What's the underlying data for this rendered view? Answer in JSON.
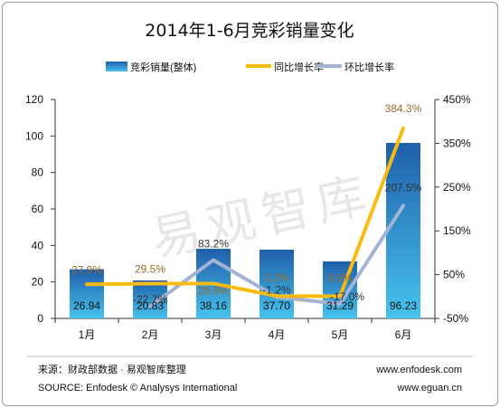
{
  "chart_data": {
    "type": "bar",
    "title": "2014年1-6月竞彩销量变化",
    "categories": [
      "1月",
      "2月",
      "3月",
      "4月",
      "5月",
      "6月"
    ],
    "series": [
      {
        "name": "竞彩销量(整体)",
        "type": "bar",
        "axis": "left",
        "values": [
          26.94,
          20.83,
          38.16,
          37.7,
          31.29,
          96.23
        ],
        "labels": [
          "26.94",
          "20.83",
          "38.16",
          "37.70",
          "31.29",
          "96.23"
        ]
      },
      {
        "name": "同比增长率",
        "type": "line",
        "axis": "right",
        "values": [
          27.9,
          29.5,
          29.6,
          1.2,
          0.5,
          384.3
        ],
        "labels": [
          "27.9%",
          "29.5%",
          "29.6%",
          "1.2%",
          "0.5%",
          "384.3%"
        ]
      },
      {
        "name": "环比增长率",
        "type": "line",
        "axis": "right",
        "values": [
          null,
          -22.7,
          83.2,
          -1.2,
          -17.0,
          207.5
        ],
        "labels": [
          "",
          "-22.7%",
          "83.2%",
          "-1.2%",
          "-17.0%",
          "207.5%"
        ]
      }
    ],
    "y_left": {
      "min": 0,
      "max": 120,
      "ticks": [
        "0",
        "20",
        "40",
        "60",
        "80",
        "100",
        "120"
      ]
    },
    "y_right": {
      "min": -50,
      "max": 450,
      "ticks": [
        "-50%",
        "50%",
        "150%",
        "250%",
        "350%",
        "450%"
      ]
    },
    "legend_position": "top-right",
    "grid": false,
    "colors": {
      "bar_top": "#1f5faa",
      "bar_bottom": "#46c3ee",
      "yoy_line": "#f8bb0e",
      "mom_line": "#a3b3d4",
      "axis": "#333333"
    }
  },
  "watermark": "易观智库",
  "footer": {
    "source_cn": "来源：财政部数据 · 易观智库整理",
    "source_en": "SOURCE: Enfodesk © Analysys International",
    "url1": "www.enfodesk.com",
    "url2": "www.eguan.cn"
  }
}
